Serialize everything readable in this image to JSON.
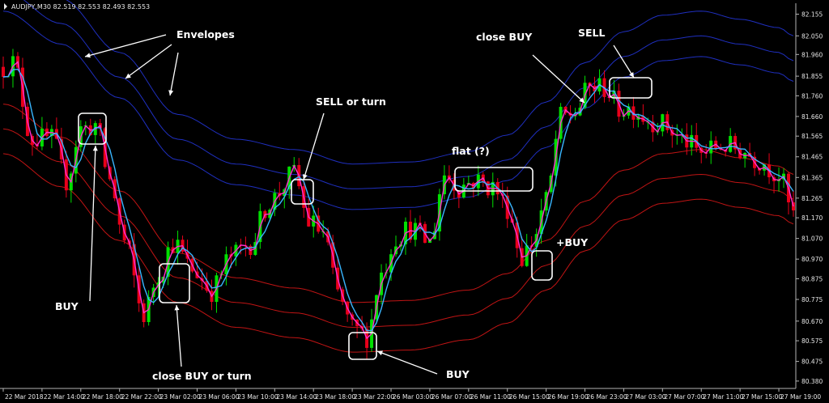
{
  "window": {
    "title": "AUDJPY,M30  82.519 82.553 82.493 82.553"
  },
  "colors": {
    "background": "#000000",
    "bull_candle": "#00e000",
    "bear_candle": "#e8001a",
    "envelope_upper": "#1f2fbf",
    "envelope_lower": "#c01414",
    "fast_line": "#ff2fd0",
    "slow_line": "#39b6ff",
    "annotation": "#ffffff",
    "axis": "#b4b4b4"
  },
  "chart_data": {
    "type": "line",
    "title": "AUDJPY,M30  82.519 82.553 82.493 82.553",
    "ylim": [
      80.36,
      82.2
    ],
    "y_ticks": [
      "82.155",
      "82.050",
      "81.960",
      "81.855",
      "81.760",
      "81.660",
      "81.565",
      "81.465",
      "81.365",
      "81.265",
      "81.170",
      "81.070",
      "80.970",
      "80.875",
      "80.775",
      "80.670",
      "80.575",
      "80.475",
      "80.380"
    ],
    "x_ticks": [
      "22 Mar 2018",
      "22 Mar 14:00",
      "22 Mar 18:00",
      "22 Mar 22:00",
      "23 Mar 02:00",
      "23 Mar 06:00",
      "23 Mar 10:00",
      "23 Mar 14:00",
      "23 Mar 18:00",
      "23 Mar 22:00",
      "26 Mar 03:00",
      "26 Mar 07:00",
      "26 Mar 11:00",
      "26 Mar 15:00",
      "26 Mar 19:00",
      "26 Mar 23:00",
      "27 Mar 03:00",
      "27 Mar 07:00",
      "27 Mar 11:00",
      "27 Mar 15:00",
      "27 Mar 19:00"
    ],
    "x_index": [
      0,
      8,
      16,
      24,
      32,
      40,
      48,
      56,
      64,
      72,
      80,
      88,
      96,
      104,
      112,
      120,
      128,
      136,
      144,
      152,
      160
    ],
    "n_bars": 164,
    "price_path_knots": [
      [
        0,
        81.9
      ],
      [
        2,
        81.92
      ],
      [
        6,
        81.55
      ],
      [
        10,
        81.55
      ],
      [
        13,
        81.35
      ],
      [
        16,
        81.6
      ],
      [
        19,
        81.62
      ],
      [
        22,
        81.35
      ],
      [
        25,
        81.05
      ],
      [
        29,
        80.7
      ],
      [
        32,
        80.9
      ],
      [
        35,
        81.05
      ],
      [
        39,
        80.92
      ],
      [
        43,
        80.82
      ],
      [
        47,
        80.98
      ],
      [
        51,
        81.05
      ],
      [
        55,
        81.25
      ],
      [
        60,
        81.38
      ],
      [
        63,
        81.15
      ],
      [
        66,
        81.1
      ],
      [
        69,
        80.8
      ],
      [
        72,
        80.63
      ],
      [
        75,
        80.6
      ],
      [
        78,
        80.9
      ],
      [
        81,
        81.08
      ],
      [
        84,
        81.12
      ],
      [
        88,
        81.05
      ],
      [
        91,
        81.38
      ],
      [
        94,
        81.32
      ],
      [
        97,
        81.35
      ],
      [
        101,
        81.32
      ],
      [
        104,
        81.22
      ],
      [
        107,
        80.98
      ],
      [
        109,
        81.05
      ],
      [
        112,
        81.25
      ],
      [
        115,
        81.65
      ],
      [
        118,
        81.68
      ],
      [
        121,
        81.8
      ],
      [
        124,
        81.8
      ],
      [
        127,
        81.7
      ],
      [
        130,
        81.7
      ],
      [
        133,
        81.65
      ],
      [
        136,
        81.62
      ],
      [
        140,
        81.55
      ],
      [
        144,
        81.48
      ],
      [
        148,
        81.52
      ],
      [
        152,
        81.5
      ],
      [
        156,
        81.45
      ],
      [
        160,
        81.38
      ],
      [
        163,
        81.18
      ]
    ],
    "envelope_center_knots": [
      [
        0,
        82.02
      ],
      [
        12,
        81.86
      ],
      [
        24,
        81.6
      ],
      [
        36,
        81.3
      ],
      [
        48,
        81.18
      ],
      [
        60,
        81.13
      ],
      [
        72,
        81.06
      ],
      [
        84,
        81.07
      ],
      [
        96,
        81.12
      ],
      [
        104,
        81.2
      ],
      [
        112,
        81.36
      ],
      [
        120,
        81.55
      ],
      [
        128,
        81.7
      ],
      [
        136,
        81.78
      ],
      [
        144,
        81.8
      ],
      [
        152,
        81.76
      ],
      [
        160,
        81.72
      ],
      [
        163,
        81.68
      ]
    ],
    "envelope_offsets": [
      0.15,
      0.25,
      0.37,
      -0.3,
      -0.42,
      -0.54
    ],
    "series": [
      {
        "name": "",
        "role": "price"
      },
      {
        "name": "",
        "role": "fast_line"
      },
      {
        "name": "",
        "role": "slow_line"
      },
      {
        "name": "Envelopes",
        "role": "envelopes"
      }
    ],
    "annotations": [
      {
        "text": "Envelopes",
        "kind": "label"
      },
      {
        "text": "BUY",
        "kind": "signal",
        "bar": 19
      },
      {
        "text": "close BUY or turn",
        "kind": "signal",
        "bar": 35
      },
      {
        "text": "SELL or turn",
        "kind": "signal",
        "bar": 60
      },
      {
        "text": "BUY",
        "kind": "signal",
        "bar": 75
      },
      {
        "text": "flat (?)",
        "kind": "signal",
        "bar": 97
      },
      {
        "text": "+BUY",
        "kind": "signal",
        "bar": 108
      },
      {
        "text": "close BUY",
        "kind": "signal",
        "bar": 118
      },
      {
        "text": "SELL",
        "kind": "signal",
        "bar": 124
      }
    ]
  }
}
